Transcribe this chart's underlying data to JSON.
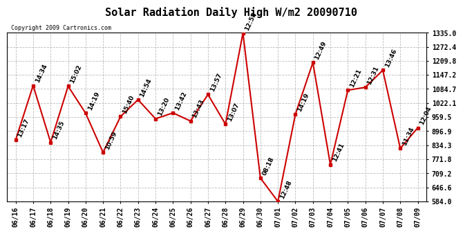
{
  "title": "Solar Radiation Daily High W/m2 20090710",
  "copyright": "Copyright 2009 Cartronics.com",
  "dates": [
    "06/16",
    "06/17",
    "06/18",
    "06/19",
    "06/20",
    "06/21",
    "06/22",
    "06/23",
    "06/24",
    "06/25",
    "06/26",
    "06/27",
    "06/28",
    "06/29",
    "06/30",
    "07/01",
    "07/02",
    "07/03",
    "07/04",
    "07/05",
    "07/06",
    "07/07",
    "07/08",
    "07/09"
  ],
  "values": [
    858,
    1100,
    847,
    1097,
    977,
    802,
    962,
    1037,
    952,
    978,
    942,
    1060,
    928,
    1333,
    688,
    584,
    972,
    1202,
    748,
    1079,
    1092,
    1168,
    820,
    912
  ],
  "times": [
    "13:17",
    "14:34",
    "14:35",
    "15:02",
    "14:19",
    "10:59",
    "15:40",
    "14:54",
    "13:20",
    "13:42",
    "13:43",
    "13:57",
    "13:07",
    "12:58",
    "08:18",
    "12:48",
    "14:19",
    "12:49",
    "12:41",
    "12:21",
    "12:31",
    "13:46",
    "11:34",
    "12:04"
  ],
  "ymin": 584.0,
  "ymax": 1335.0,
  "yticks": [
    584.0,
    646.6,
    709.2,
    771.8,
    834.3,
    896.9,
    959.5,
    1022.1,
    1084.7,
    1147.2,
    1209.8,
    1272.4,
    1335.0
  ],
  "ytick_labels": [
    "584.0",
    "646.6",
    "709.2",
    "771.8",
    "834.3",
    "896.9",
    "959.5",
    "1022.1",
    "1084.7",
    "1147.2",
    "1209.8",
    "1272.4",
    "1335.0"
  ],
  "line_color": "#cc0000",
  "marker_color": "#cc0000",
  "bg_color": "#ffffff",
  "grid_color": "#bbbbbb",
  "title_fontsize": 11,
  "label_fontsize": 6.5,
  "copyright_fontsize": 6,
  "tick_fontsize": 7
}
